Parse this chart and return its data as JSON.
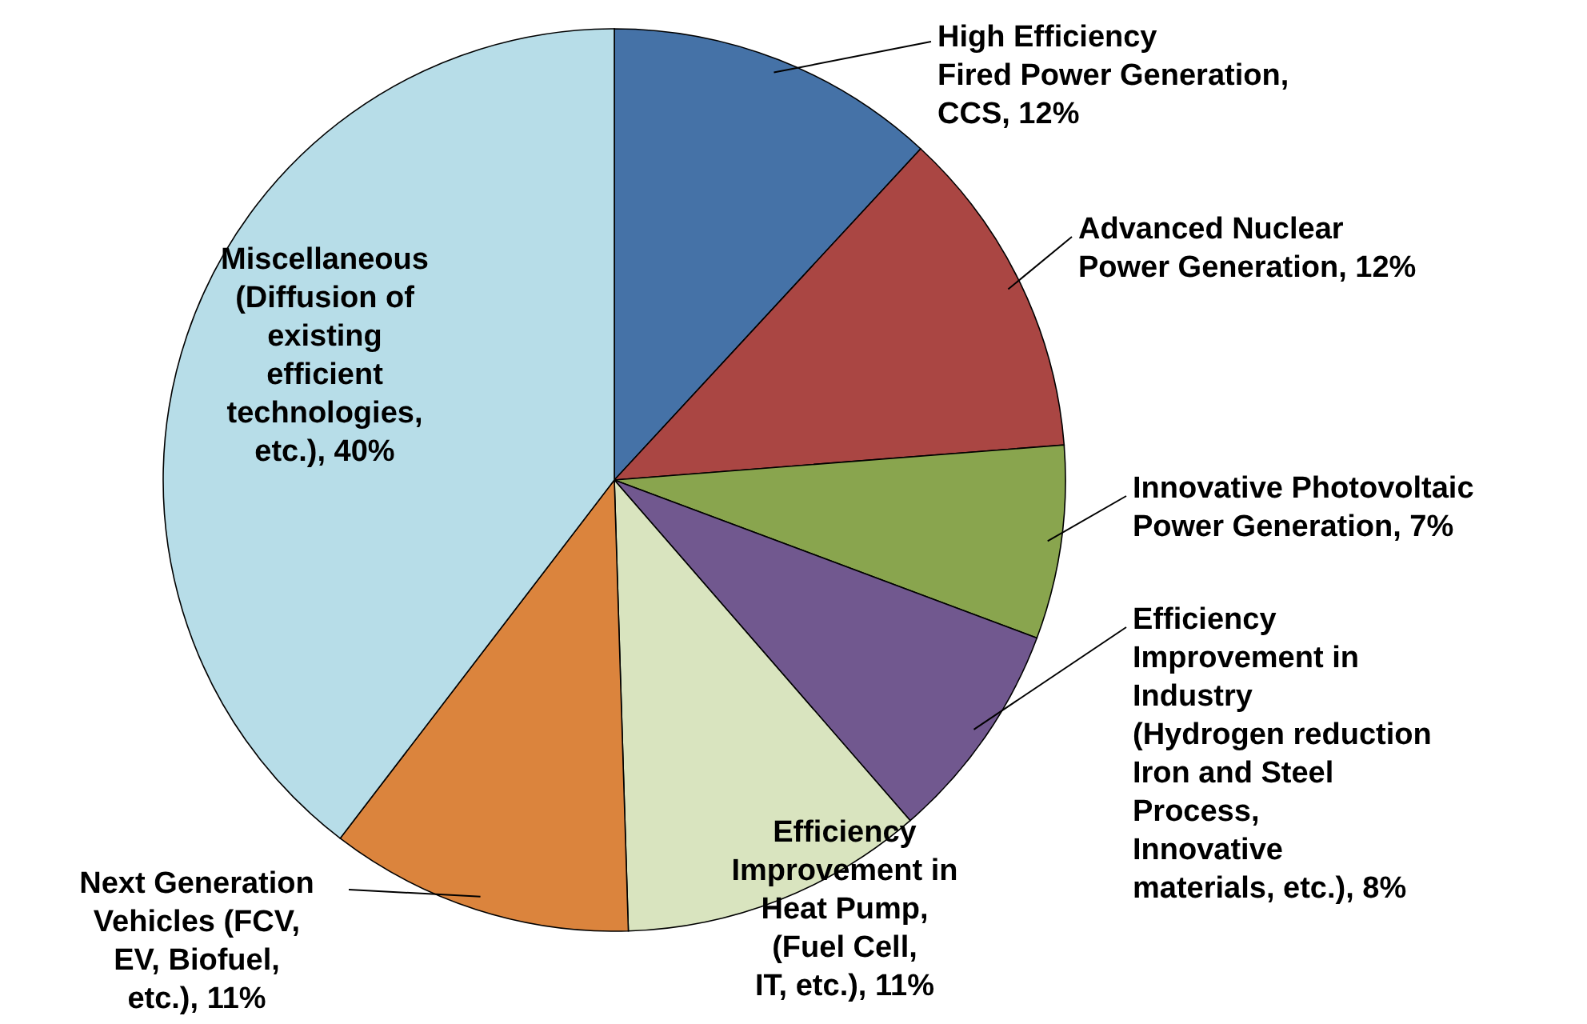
{
  "chart_data": {
    "type": "pie",
    "categories": [
      "High Efficiency Fired Power Generation, CCS",
      "Advanced Nuclear Power Generation",
      "Innovative Photovoltaic Power Generation",
      "Efficiency Improvement in Industry (Hydrogen reduction Iron and Steel Process, Innovative materials, etc.)",
      "Efficiency Improvement in Heat Pump, (Fuel Cell, IT, etc.)",
      "Next Generation Vehicles (FCV, EV, Biofuel, etc.)",
      "Miscellaneous (Diffusion of existing efficient technologies, etc.)"
    ],
    "values": [
      12,
      12,
      7,
      8,
      11,
      11,
      40
    ],
    "value_labels": [
      ", 12%",
      ", 12%",
      ", 7%",
      ", 8%",
      ", 11%",
      ", 11%",
      ", 40%"
    ],
    "colors": [
      "#4572a7",
      "#aa4643",
      "#89a54e",
      "#71588f",
      "#d9e4bf",
      "#db843d",
      "#b7dde8"
    ]
  }
}
